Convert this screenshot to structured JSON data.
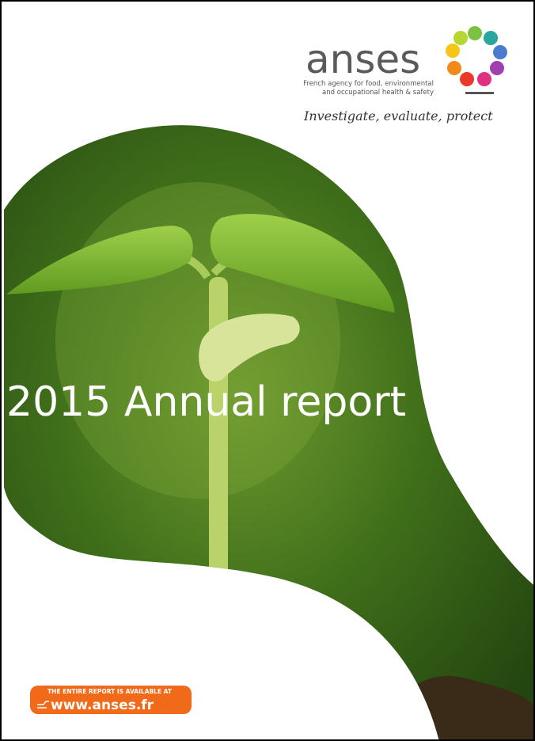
{
  "logo": {
    "name": "anses",
    "subtitle_lines": [
      "French agency for food, environmental",
      "and occupational health & safety"
    ],
    "tagline": "Investigate, evaluate, protect"
  },
  "title": "2015 Annual report",
  "badge": {
    "caption": "THE ENTIRE REPORT IS AVAILABLE AT",
    "url": "www.anses.fr"
  }
}
